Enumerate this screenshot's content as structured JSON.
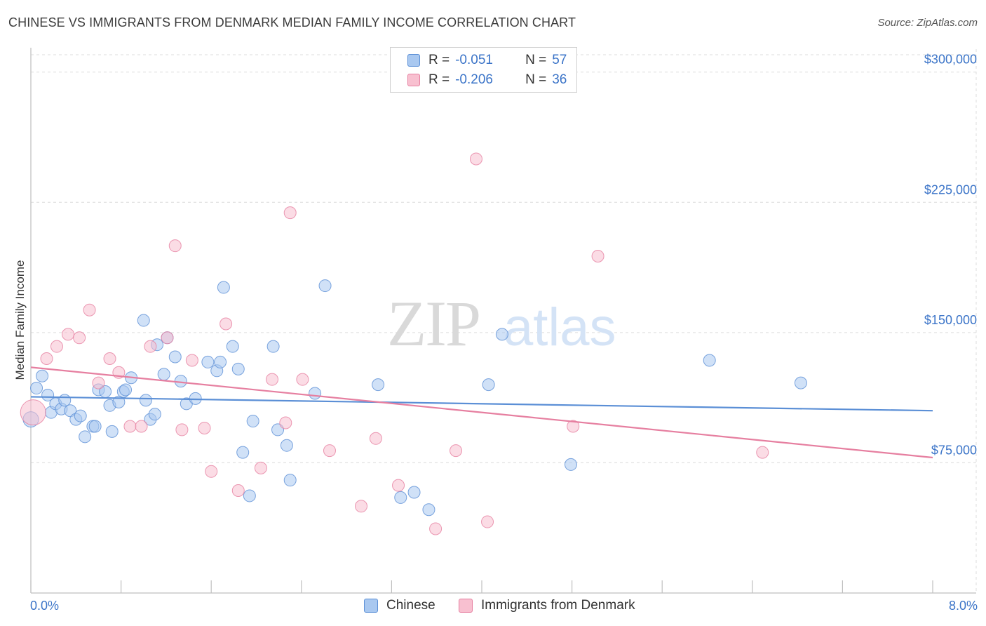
{
  "title": "CHINESE VS IMMIGRANTS FROM DENMARK MEDIAN FAMILY INCOME CORRELATION CHART",
  "source": "Source: ZipAtlas.com",
  "watermark": {
    "zip": "ZIP",
    "atlas": "atlas"
  },
  "legend_top": {
    "rows": [
      {
        "r_label": "R =",
        "r_value": "-0.051",
        "n_label": "N =",
        "n_value": "57",
        "color": "#a9c8f0",
        "border": "#5b8fd6"
      },
      {
        "r_label": "R =",
        "r_value": "-0.206",
        "n_label": "N =",
        "n_value": "36",
        "color": "#f8c0d0",
        "border": "#e67fa0"
      }
    ]
  },
  "chart_data": {
    "type": "scatter",
    "ylabel": "Median Family Income",
    "x_tick_labels": {
      "left": "0.0%",
      "right": "8.0%"
    },
    "xlim": [
      0,
      8
    ],
    "ylim": [
      0,
      310000
    ],
    "y_ticks": [
      {
        "value": 75000,
        "label": "$75,000"
      },
      {
        "value": 150000,
        "label": "$150,000"
      },
      {
        "value": 225000,
        "label": "$225,000"
      },
      {
        "value": 300000,
        "label": "$300,000"
      }
    ],
    "grid": true,
    "series": [
      {
        "name": "Chinese",
        "color": "#5b8fd6",
        "fill": "#a9c8f0",
        "trend": {
          "x": [
            0,
            8
          ],
          "y": [
            113000,
            105000
          ]
        },
        "points": [
          [
            0.0,
            100000
          ],
          [
            0.05,
            118000
          ],
          [
            0.1,
            125000
          ],
          [
            0.15,
            114000
          ],
          [
            0.18,
            104000
          ],
          [
            0.22,
            109000
          ],
          [
            0.27,
            106000
          ],
          [
            0.3,
            111000
          ],
          [
            0.35,
            105000
          ],
          [
            0.4,
            100000
          ],
          [
            0.44,
            102000
          ],
          [
            0.48,
            90000
          ],
          [
            0.55,
            96000
          ],
          [
            0.57,
            96000
          ],
          [
            0.6,
            117000
          ],
          [
            0.66,
            116000
          ],
          [
            0.7,
            108000
          ],
          [
            0.72,
            93000
          ],
          [
            0.78,
            110000
          ],
          [
            0.82,
            116000
          ],
          [
            0.84,
            117000
          ],
          [
            0.89,
            124000
          ],
          [
            1.0,
            157000
          ],
          [
            1.02,
            111000
          ],
          [
            1.06,
            100000
          ],
          [
            1.1,
            103000
          ],
          [
            1.12,
            143000
          ],
          [
            1.18,
            126000
          ],
          [
            1.21,
            147000
          ],
          [
            1.28,
            136000
          ],
          [
            1.33,
            122000
          ],
          [
            1.38,
            109000
          ],
          [
            1.46,
            112000
          ],
          [
            1.57,
            133000
          ],
          [
            1.65,
            128000
          ],
          [
            1.68,
            133000
          ],
          [
            1.71,
            176000
          ],
          [
            1.79,
            142000
          ],
          [
            1.84,
            129000
          ],
          [
            1.88,
            81000
          ],
          [
            1.94,
            56000
          ],
          [
            1.97,
            99000
          ],
          [
            2.15,
            142000
          ],
          [
            2.19,
            94000
          ],
          [
            2.27,
            85000
          ],
          [
            2.3,
            65000
          ],
          [
            2.52,
            115000
          ],
          [
            2.61,
            177000
          ],
          [
            3.08,
            120000
          ],
          [
            3.28,
            55000
          ],
          [
            3.4,
            58000
          ],
          [
            3.53,
            48000
          ],
          [
            4.06,
            120000
          ],
          [
            4.18,
            149000
          ],
          [
            4.79,
            74000
          ],
          [
            6.02,
            134000
          ],
          [
            6.83,
            121000
          ]
        ]
      },
      {
        "name": "Immigrants from Denmark",
        "color": "#e67fa0",
        "fill": "#f8c0d0",
        "trend": {
          "x": [
            0,
            8
          ],
          "y": [
            130000,
            78000
          ]
        },
        "points": [
          [
            0.02,
            104000
          ],
          [
            0.14,
            135000
          ],
          [
            0.23,
            142000
          ],
          [
            0.33,
            149000
          ],
          [
            0.43,
            147000
          ],
          [
            0.52,
            163000
          ],
          [
            0.6,
            121000
          ],
          [
            0.7,
            135000
          ],
          [
            0.78,
            127000
          ],
          [
            0.88,
            96000
          ],
          [
            0.98,
            96000
          ],
          [
            1.06,
            142000
          ],
          [
            1.21,
            147000
          ],
          [
            1.28,
            200000
          ],
          [
            1.34,
            94000
          ],
          [
            1.43,
            134000
          ],
          [
            1.54,
            95000
          ],
          [
            1.6,
            70000
          ],
          [
            1.73,
            155000
          ],
          [
            1.84,
            59000
          ],
          [
            2.04,
            72000
          ],
          [
            2.14,
            123000
          ],
          [
            2.26,
            98000
          ],
          [
            2.3,
            219000
          ],
          [
            2.41,
            123000
          ],
          [
            2.65,
            82000
          ],
          [
            2.93,
            50000
          ],
          [
            3.06,
            89000
          ],
          [
            3.26,
            62000
          ],
          [
            3.59,
            37000
          ],
          [
            3.77,
            82000
          ],
          [
            3.95,
            250000
          ],
          [
            4.05,
            41000
          ],
          [
            4.81,
            96000
          ],
          [
            5.03,
            194000
          ],
          [
            6.49,
            81000
          ]
        ]
      }
    ]
  }
}
